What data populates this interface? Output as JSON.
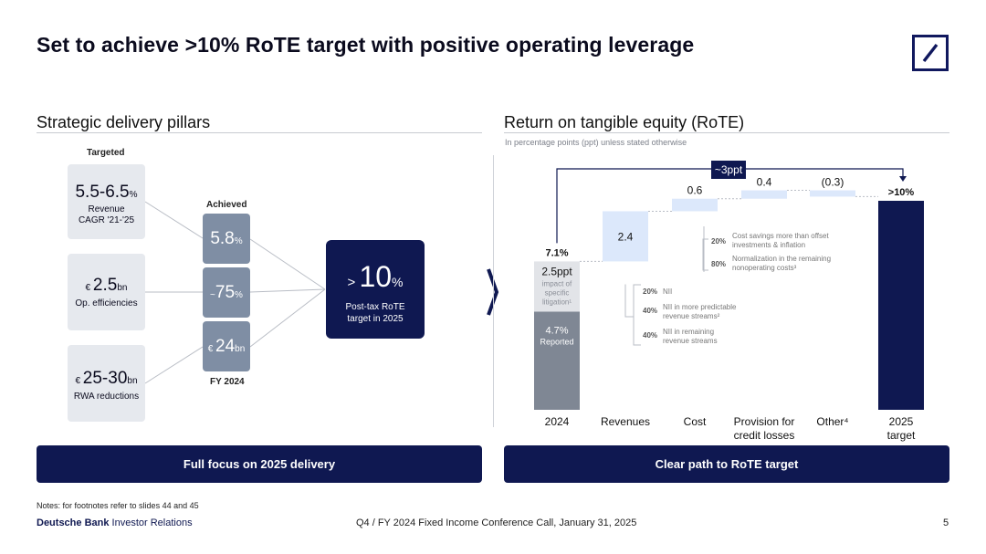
{
  "title": "Set to achieve >10% RoTE target with positive operating leverage",
  "left": {
    "section_title": "Strategic delivery pillars",
    "targeted_head": "Targeted",
    "achieved_head": "Achieved",
    "fy_label": "FY 2024",
    "targets": [
      {
        "prefix": "",
        "value": "5.5-6.5",
        "unit": "%",
        "label": "Revenue CAGR '21-'25"
      },
      {
        "prefix": "€ ",
        "value": "2.5",
        "unit": "bn",
        "label": "Op. efficiencies"
      },
      {
        "prefix": "€ ",
        "value": "25-30",
        "unit": "bn",
        "label": "RWA reductions"
      }
    ],
    "achieved": [
      {
        "prefix": "",
        "value": "5.8",
        "unit": "%"
      },
      {
        "prefix": "~",
        "value": "75",
        "unit": "%"
      },
      {
        "prefix": "€ ",
        "value": "24",
        "unit": "bn"
      }
    ],
    "target_box": {
      "prefix": "> ",
      "value": "10",
      "unit": "%",
      "line1": "Post-tax RoTE",
      "line2": "target in 2025"
    },
    "banner": "Full focus on 2025 delivery"
  },
  "right": {
    "section_title": "Return on tangible equity (RoTE)",
    "subtitle": "In percentage points (ppt) unless stated otherwise",
    "bracket_label": "~3ppt",
    "banner": "Clear path to RoTE target",
    "base_reported_label": "4.7%",
    "base_reported_sub": "Reported",
    "litigation_label": "2.5ppt",
    "litigation_sub": "impact of specific litigation¹",
    "base_total_label": "7.1%",
    "revenue_breakdown": [
      {
        "pct": "20%",
        "text": "NII"
      },
      {
        "pct": "40%",
        "text": "NII in more predictable revenue streams²"
      },
      {
        "pct": "40%",
        "text": "NII in remaining revenue streams"
      }
    ],
    "cost_breakdown": [
      {
        "pct": "20%",
        "text": "Cost savings more than offset investments & inflation"
      },
      {
        "pct": "80%",
        "text": "Normalization in the remaining nonoperating costs³"
      }
    ]
  },
  "chart_data": {
    "type": "bar",
    "subtype": "waterfall",
    "categories": [
      "2024",
      "Revenues",
      "Cost",
      "Provision for credit losses",
      "Other⁴",
      "2025 target"
    ],
    "values": [
      7.1,
      2.4,
      0.6,
      0.4,
      -0.3,
      10
    ],
    "data_labels": [
      "7.1%",
      "2.4",
      "0.6",
      "0.4",
      "(0.3)",
      ">10%"
    ],
    "base_components": [
      {
        "name": "Reported",
        "value": 4.7
      },
      {
        "name": "impact of specific litigation",
        "value": 2.5
      }
    ],
    "ylim": [
      0,
      10.5
    ],
    "grid": false,
    "legend": "none"
  },
  "colors": {
    "navy": "#0f1851",
    "slate": "#7f8ea4",
    "light_blue": "#dce8fb",
    "pale": "#e6e9ee",
    "gray_bar": "#7f8794"
  },
  "footer": {
    "note": "Notes: for footnotes refer to slides 44 and 45",
    "brand_bold": "Deutsche Bank",
    "brand_rest": " Investor Relations",
    "center": "Q4 / FY 2024 Fixed Income Conference Call, January 31, 2025",
    "page": "5"
  }
}
